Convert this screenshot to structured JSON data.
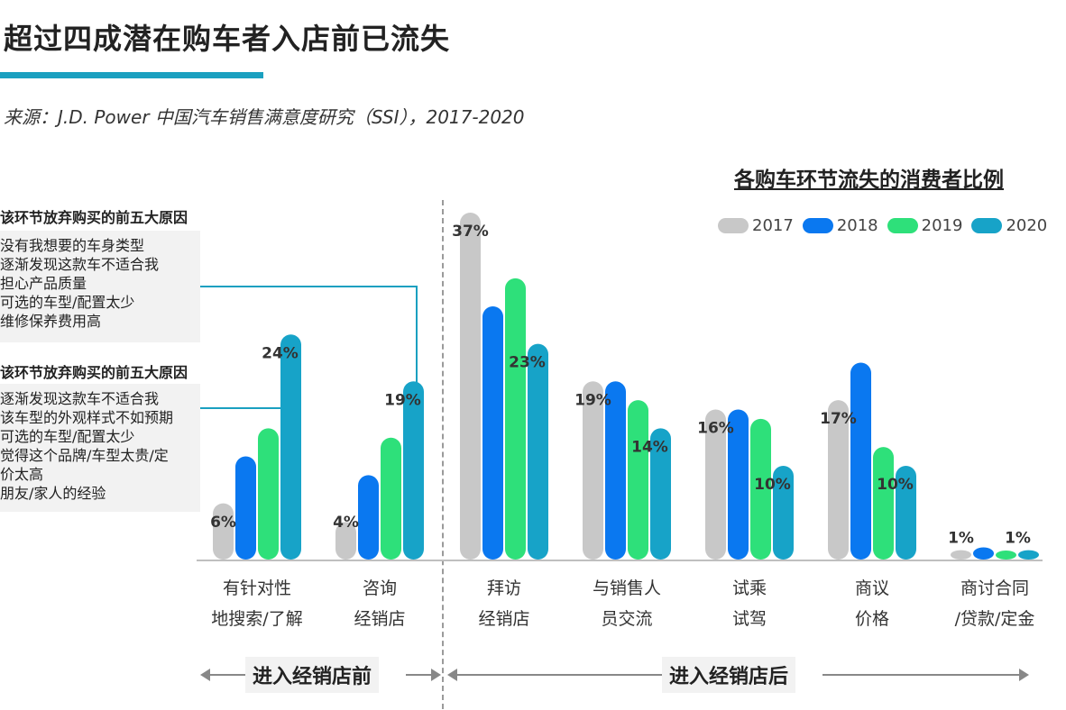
{
  "title": "超过四成潜在购车者入店前已流失",
  "source": "来源：J.D. Power 中国汽车销售满意度研究（SSI），2017-2020",
  "accent_color": "#1aa0c0",
  "reasons": [
    {
      "heading": "该环节放弃购买的前五大原因",
      "items": [
        "没有我想要的车身类型",
        "逐渐发现这款车不适合我",
        "担心产品质量",
        "可选的车型/配置太少",
        "维修保养费用高"
      ]
    },
    {
      "heading": "该环节放弃购买的前五大原因",
      "items": [
        "逐渐发现这款车不适合我",
        "该车型的外观样式不如预期",
        "可选的车型/配置太少",
        "觉得这个品牌/车型太贵/定",
        "价太高",
        "朋友/家人的经验"
      ]
    }
  ],
  "sections": {
    "before": "进入经销店前",
    "after": "进入经销店后"
  },
  "chart_data": {
    "type": "bar",
    "title": "各购车环节流失的消费者比例",
    "categories": [
      [
        "有针对性",
        "地搜索/了解"
      ],
      [
        "咨询",
        "经销店"
      ],
      [
        "拜访",
        "经销店"
      ],
      [
        "与销售人",
        "员交流"
      ],
      [
        "试乘",
        "试驾"
      ],
      [
        "商议",
        "价格"
      ],
      [
        "商讨合同",
        "/贷款/定金"
      ]
    ],
    "series": [
      {
        "name": "2017",
        "color": "#c8c8c8",
        "values": [
          6,
          4,
          37,
          19,
          16,
          17,
          1
        ]
      },
      {
        "name": "2018",
        "color": "#0a78f0",
        "values": [
          11,
          9,
          27,
          19,
          16,
          21,
          1.3
        ]
      },
      {
        "name": "2019",
        "color": "#2ee07a",
        "values": [
          14,
          13,
          30,
          17,
          15,
          12,
          0.9
        ]
      },
      {
        "name": "2020",
        "color": "#17a3c8",
        "values": [
          24,
          19,
          23,
          14,
          10,
          10,
          1
        ]
      }
    ],
    "value_labels": [
      {
        "category": 0,
        "series": 0,
        "text": "6%"
      },
      {
        "category": 0,
        "series": 3,
        "text": "24%"
      },
      {
        "category": 1,
        "series": 0,
        "text": "4%"
      },
      {
        "category": 1,
        "series": 3,
        "text": "19%"
      },
      {
        "category": 2,
        "series": 0,
        "text": "37%"
      },
      {
        "category": 2,
        "series": 3,
        "text": "23%"
      },
      {
        "category": 3,
        "series": 0,
        "text": "19%"
      },
      {
        "category": 3,
        "series": 3,
        "text": "14%"
      },
      {
        "category": 4,
        "series": 0,
        "text": "16%"
      },
      {
        "category": 4,
        "series": 3,
        "text": "10%"
      },
      {
        "category": 5,
        "series": 0,
        "text": "17%"
      },
      {
        "category": 5,
        "series": 3,
        "text": "10%"
      },
      {
        "category": 6,
        "series": 0,
        "text": "1%"
      },
      {
        "category": 6,
        "series": 3,
        "text": "1%"
      }
    ],
    "ylim": [
      0,
      37
    ],
    "grid": false,
    "legend_position": "top-right"
  }
}
